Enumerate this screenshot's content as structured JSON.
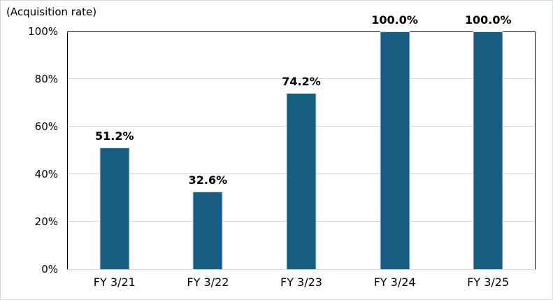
{
  "title": "(Acquisition rate)",
  "colors": {
    "bar_fill": "#165d81",
    "bar_border": "#ccdae4",
    "gridline": "#d9d9d9",
    "axis": "#000000",
    "baseline": "#d9d9d9",
    "outer_border": "#d5d9dd",
    "text": "#000000"
  },
  "y_axis": {
    "ticks": [
      "100%",
      "80%",
      "60%",
      "40%",
      "20%",
      "0%"
    ]
  },
  "chart_data": {
    "type": "bar",
    "title": "(Acquisition rate)",
    "categories": [
      "FY 3/21",
      "FY 3/22",
      "FY 3/23",
      "FY 3/24",
      "FY 3/25"
    ],
    "values": [
      51.2,
      32.6,
      74.2,
      100.0,
      100.0
    ],
    "data_labels": [
      "51.2%",
      "32.6%",
      "74.2%",
      "100.0%",
      "100.0%"
    ],
    "xlabel": "",
    "ylabel": "Acquisition rate",
    "ylim": [
      0,
      100
    ],
    "y_tick_step": 20,
    "grid": true,
    "legend": false
  }
}
